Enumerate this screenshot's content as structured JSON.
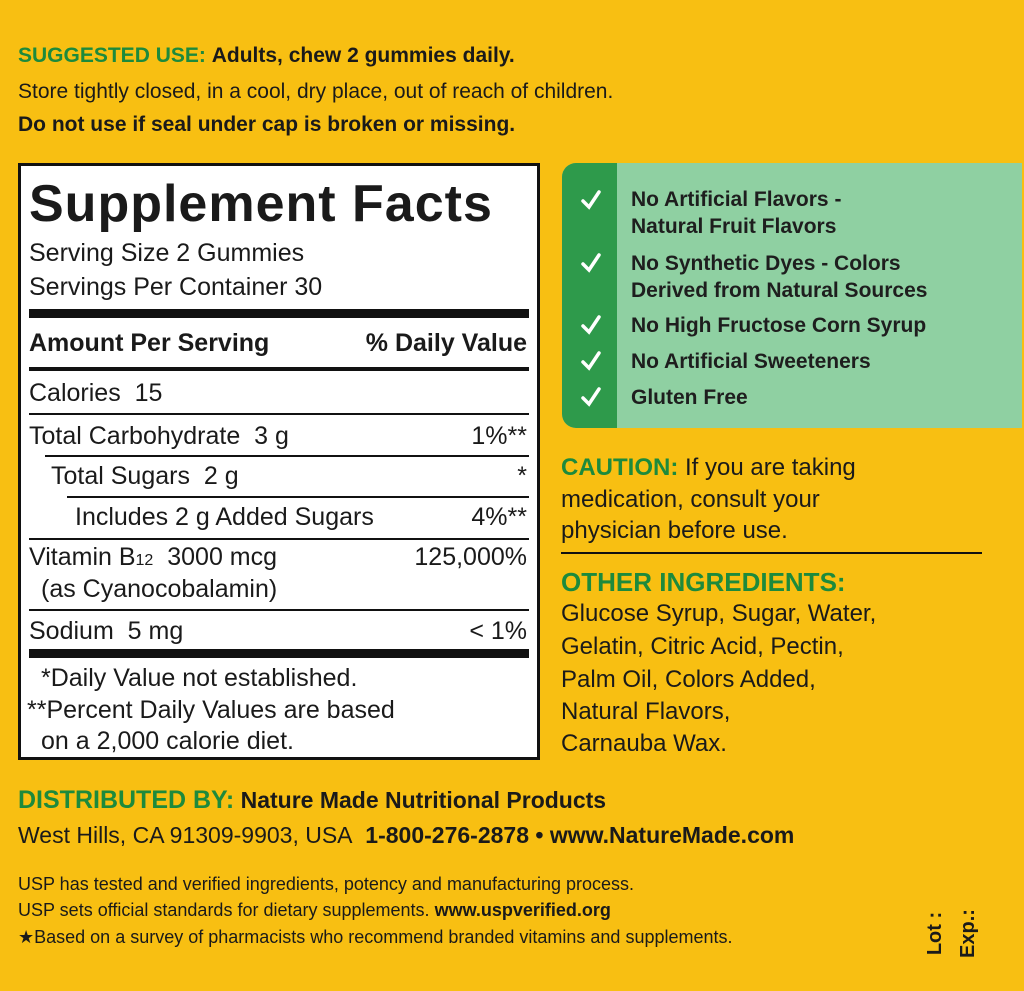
{
  "suggested_use": {
    "label": "SUGGESTED USE:",
    "text": "Adults, chew 2 gummies daily.",
    "storage": "Store tightly closed, in a cool, dry place, out of reach of children.",
    "warning": "Do not use if seal under cap is broken or missing."
  },
  "supplement_facts": {
    "title": "Supplement Facts",
    "serving_size": "Serving Size 2 Gummies",
    "servings_per_container": "Servings Per Container 30",
    "header": {
      "amount": "Amount Per Serving",
      "daily_value": "% Daily Value"
    },
    "rows": [
      {
        "name": "Calories",
        "amount": "15"
      },
      {
        "name": "Total Carbohydrate",
        "amount": "3 g",
        "dv": "1%**"
      },
      {
        "name": "Total Sugars",
        "amount": "2 g",
        "dv": "*"
      },
      {
        "name": "Includes 2 g Added Sugars",
        "dv": "4%**"
      },
      {
        "name": "Vitamin B",
        "subscript": "12",
        "amount": "3000 mcg",
        "dv": "125,000%",
        "source": "(as Cyanocobalamin)"
      },
      {
        "name": "Sodium",
        "amount": "5 mg",
        "dv": "< 1%"
      }
    ],
    "footnotes": [
      "*Daily Value not established.",
      "**Percent Daily Values are based",
      "on a 2,000 calorie diet."
    ]
  },
  "claims": [
    [
      "No Artificial Flavors -",
      "Natural Fruit Flavors"
    ],
    [
      "No Synthetic Dyes - Colors",
      "Derived from Natural Sources"
    ],
    [
      "No High Fructose Corn Syrup"
    ],
    [
      "No Artificial Sweeteners"
    ],
    [
      "Gluten Free"
    ]
  ],
  "caution": {
    "label": "CAUTION:",
    "lines": [
      "If you are taking",
      "medication, consult your",
      "physician before use."
    ]
  },
  "other_ingredients": {
    "label": "OTHER INGREDIENTS:",
    "lines": [
      "Glucose Syrup, Sugar, Water,",
      "Gelatin, Citric Acid, Pectin,",
      "Palm Oil, Colors Added,",
      "Natural Flavors,",
      "Carnauba Wax."
    ]
  },
  "distributor": {
    "label": "DISTRIBUTED BY:",
    "name": "Nature Made Nutritional Products",
    "address": "West Hills, CA 91309-9903, USA",
    "phone": "1-800-276-2878",
    "separator": "•",
    "website": "www.NatureMade.com"
  },
  "usp": {
    "line1": "USP has tested and verified ingredients, potency and manufacturing process.",
    "line2": "USP sets official standards for dietary supplements.",
    "url": "www.uspverified.org",
    "line3": "★Based on a survey of pharmacists who recommend branded vitamins and supplements."
  },
  "lot": "Lot :",
  "exp": "Exp.:"
}
